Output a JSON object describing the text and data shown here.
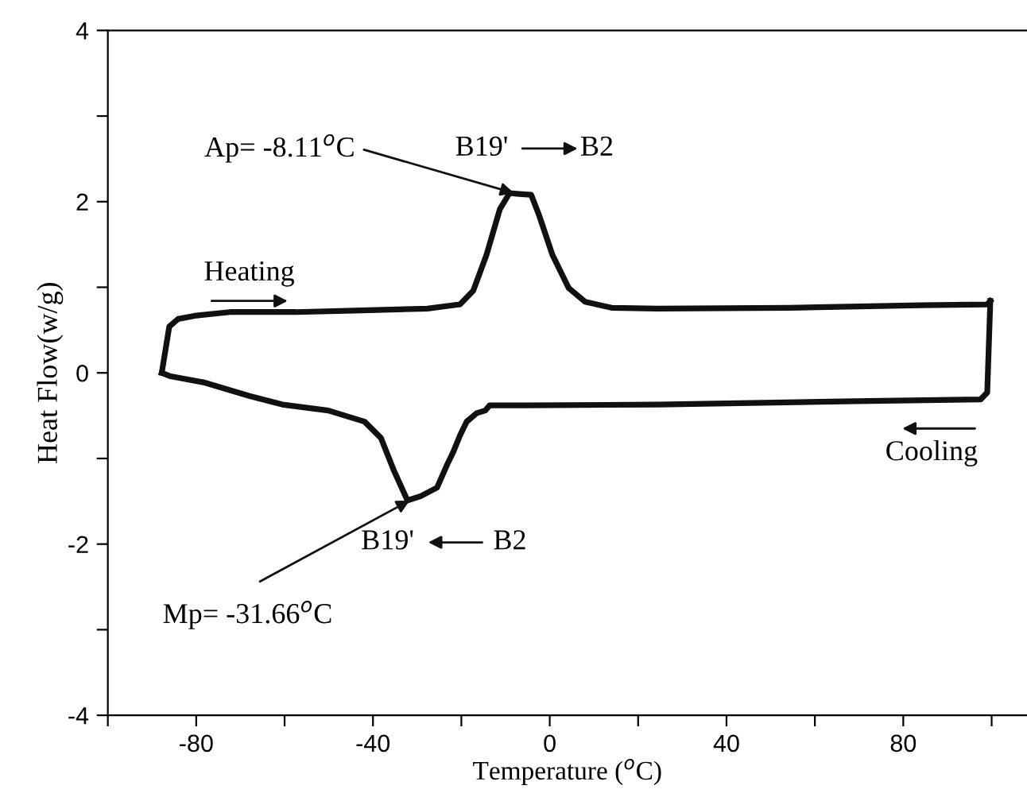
{
  "chart_data": {
    "type": "line",
    "xlabel": "Temperature ($^{o}$C)",
    "ylabel": "Heat Flow(w/g)",
    "xlim": [
      -100,
      108
    ],
    "ylim": [
      -4,
      4
    ],
    "xticks": [
      {
        "value": -100,
        "label": null
      },
      -80,
      {
        "value": -60,
        "label": null
      },
      -40,
      {
        "value": -20,
        "label": null
      },
      0,
      {
        "value": 20,
        "label": null
      },
      40,
      {
        "value": 60,
        "label": null
      },
      80,
      {
        "value": 100,
        "label": null
      }
    ],
    "yticks": [
      -4,
      {
        "value": -3,
        "label": null
      },
      -2,
      {
        "value": -1,
        "label": null
      },
      0,
      {
        "value": 1,
        "label": null
      },
      2,
      {
        "value": 3,
        "label": null
      },
      4
    ],
    "grid": false,
    "legend": false,
    "marker": "none",
    "line_style": "solid",
    "series": [
      {
        "color": "#111111",
        "x": [
          -87.8,
          -86.1,
          -84.1,
          -79.9,
          -72.4,
          -57.5,
          -42.6,
          -27.7,
          -20.3,
          -17.3,
          -14.3,
          -11.3,
          -9.1,
          -6.9,
          -4.2,
          -2.4,
          0.6,
          4.3,
          8.0,
          14.0,
          24.4,
          54.2,
          84.1,
          99.0,
          99.7
        ],
        "values": [
          0.0,
          0.54,
          0.63,
          0.67,
          0.71,
          0.71,
          0.73,
          0.75,
          0.8,
          0.96,
          1.38,
          1.91,
          2.1,
          2.09,
          2.08,
          1.84,
          1.38,
          0.99,
          0.83,
          0.76,
          0.75,
          0.76,
          0.79,
          0.8,
          0.84
        ]
      },
      {
        "color": "#111111",
        "x": [
          99.7,
          99.0,
          97.5,
          69.2,
          24.4,
          -5.4,
          -13.6,
          -14.6,
          -16.5,
          -18.8,
          -20.3,
          -21.8,
          -23.2,
          -25.5,
          -29.2,
          -32.2,
          -35.2,
          -38.2,
          -41.9,
          -50.1,
          -60.5,
          -68.0,
          -78.4,
          -85.8,
          -87.8
        ],
        "values": [
          0.84,
          -0.23,
          -0.31,
          -0.33,
          -0.37,
          -0.38,
          -0.38,
          -0.44,
          -0.47,
          -0.57,
          -0.73,
          -0.92,
          -1.07,
          -1.34,
          -1.44,
          -1.49,
          -1.15,
          -0.76,
          -0.57,
          -0.44,
          -0.37,
          -0.27,
          -0.11,
          -0.04,
          0.0
        ]
      }
    ],
    "annotations": [
      {
        "text": "Ap= -8.11$^{o}$C",
        "x": -8.11,
        "y": 2.1
      },
      {
        "text": "Mp= -31.66$^{o}$C",
        "x": -31.66,
        "y": -1.49
      },
      "Heating",
      "Cooling",
      "B19'",
      "B2",
      "B19'",
      "B2"
    ]
  }
}
